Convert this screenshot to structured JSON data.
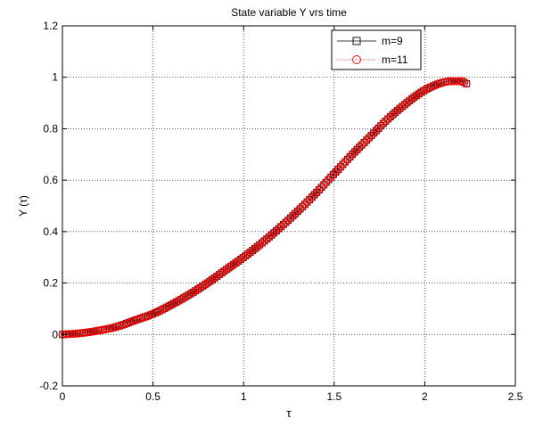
{
  "chart_data": {
    "type": "line",
    "title": "State variable Y vrs time",
    "xlabel": "τ",
    "ylabel": "Y (τ)",
    "xlim": [
      0,
      2.5
    ],
    "ylim": [
      -0.2,
      1.2
    ],
    "xticks": [
      "0",
      "0.5",
      "1",
      "1.5",
      "2",
      "2.5"
    ],
    "yticks": [
      "-0.2",
      "0",
      "0.2",
      "0.4",
      "0.6",
      "0.8",
      "1",
      "1.2"
    ],
    "grid": true,
    "legend_position": "top-right",
    "series": [
      {
        "name": "m=9",
        "color": "#000000",
        "marker": "square",
        "x": [
          0,
          0.1,
          0.2,
          0.3,
          0.4,
          0.5,
          0.6,
          0.7,
          0.8,
          0.9,
          1.0,
          1.1,
          1.2,
          1.3,
          1.4,
          1.5,
          1.6,
          1.7,
          1.8,
          1.9,
          2.0,
          2.1,
          2.15,
          2.2,
          2.23
        ],
        "y": [
          0.0,
          0.005,
          0.015,
          0.03,
          0.055,
          0.08,
          0.115,
          0.155,
          0.2,
          0.25,
          0.3,
          0.355,
          0.415,
          0.48,
          0.55,
          0.625,
          0.7,
          0.77,
          0.84,
          0.9,
          0.95,
          0.98,
          0.985,
          0.985,
          0.975
        ]
      },
      {
        "name": "m=11",
        "color": "#ff0000",
        "marker": "circle",
        "x": [
          0,
          0.1,
          0.2,
          0.3,
          0.4,
          0.5,
          0.6,
          0.7,
          0.8,
          0.9,
          1.0,
          1.1,
          1.2,
          1.3,
          1.4,
          1.5,
          1.6,
          1.7,
          1.8,
          1.9,
          2.0,
          2.1,
          2.15,
          2.2,
          2.23
        ],
        "y": [
          0.0,
          0.005,
          0.015,
          0.03,
          0.055,
          0.08,
          0.115,
          0.155,
          0.2,
          0.25,
          0.3,
          0.355,
          0.415,
          0.48,
          0.55,
          0.625,
          0.7,
          0.77,
          0.84,
          0.9,
          0.95,
          0.98,
          0.985,
          0.985,
          0.975
        ]
      }
    ]
  }
}
